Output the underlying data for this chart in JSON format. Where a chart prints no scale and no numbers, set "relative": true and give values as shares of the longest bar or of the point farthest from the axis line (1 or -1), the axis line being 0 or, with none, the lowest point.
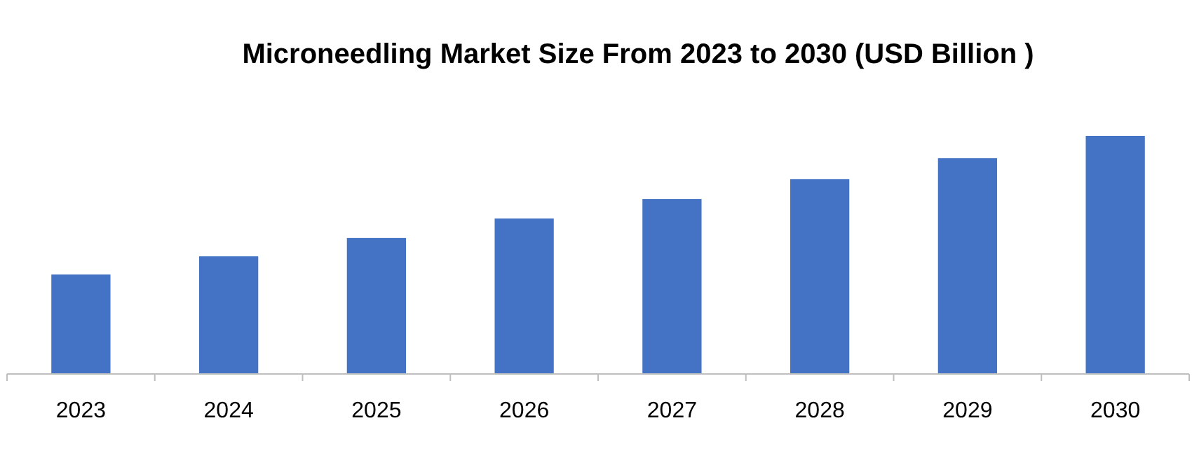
{
  "chart_data": {
    "type": "bar",
    "title": "Microneedling Market Size From 2023 to 2030 (USD Billion )",
    "categories": [
      "2023",
      "2024",
      "2025",
      "2026",
      "2027",
      "2028",
      "2029",
      "2030"
    ],
    "values": [
      0.418,
      0.494,
      0.571,
      0.653,
      0.735,
      0.818,
      0.906,
      1
    ],
    "color": "#4472c4",
    "relative": true
  }
}
